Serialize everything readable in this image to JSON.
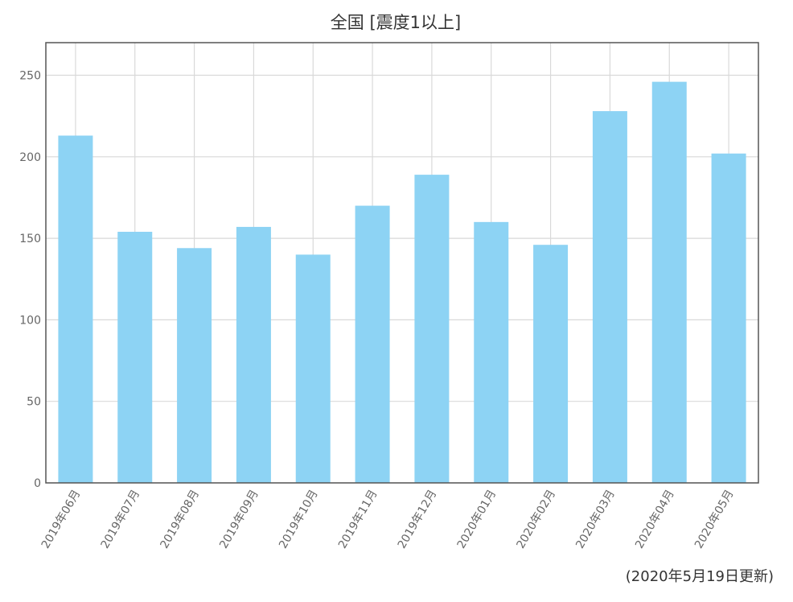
{
  "chart_data": {
    "type": "bar",
    "title": "全国 [震度1以上]",
    "categories": [
      "2019年06月",
      "2019年07月",
      "2019年08月",
      "2019年09月",
      "2019年10月",
      "2019年11月",
      "2019年12月",
      "2020年01月",
      "2020年02月",
      "2020年03月",
      "2020年04月",
      "2020年05月"
    ],
    "series": [
      {
        "values": [
          213,
          154,
          144,
          157,
          140,
          170,
          189,
          160,
          146,
          228,
          246,
          202
        ]
      }
    ],
    "xlabel": "",
    "ylabel": "",
    "ylim": [
      0,
      270
    ],
    "yticks": [
      0,
      50,
      100,
      150,
      200,
      250
    ],
    "grid": true,
    "legend": "none",
    "colors": {
      "bar": "#8dd3f4",
      "grid": "#d9d9d9",
      "frame": "#555555",
      "text": "#666666"
    }
  },
  "footnote": "(2020年5月19日更新)"
}
